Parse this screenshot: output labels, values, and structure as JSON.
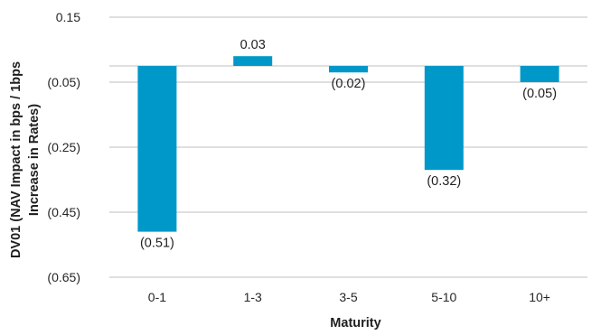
{
  "chart_data": {
    "type": "bar",
    "categories": [
      "0-1",
      "1-3",
      "3-5",
      "5-10",
      "10+"
    ],
    "values": [
      -0.51,
      0.03,
      -0.02,
      -0.32,
      -0.05
    ],
    "data_labels": [
      "(0.51)",
      "0.03",
      "(0.02)",
      "(0.32)",
      "(0.05)"
    ],
    "xlabel": "Maturity",
    "ylabel_lines": [
      "DV01 (NAV Impact in bps / 1bps",
      "Increase in Rates)"
    ],
    "ylim": [
      -0.65,
      0.15
    ],
    "yticks": [
      0.15,
      -0.05,
      -0.25,
      -0.45,
      -0.65
    ],
    "ytick_labels": [
      "0.15",
      "(0.05)",
      "(0.25)",
      "(0.45)",
      "(0.65)"
    ],
    "grid": true,
    "legend": "none",
    "bar_color": "#0098c9"
  }
}
